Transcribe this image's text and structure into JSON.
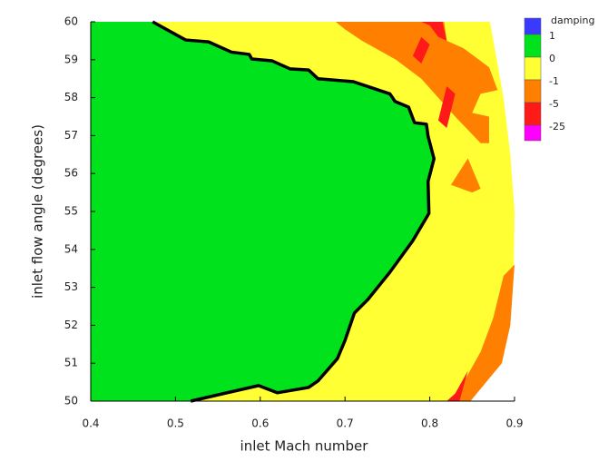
{
  "chart_data": {
    "type": "contour",
    "xlabel": "inlet Mach number",
    "ylabel": "inlet flow angle (degrees)",
    "xlim": [
      0.4,
      0.9
    ],
    "ylim": [
      50,
      60
    ],
    "xticks": [
      0.4,
      0.5,
      0.6,
      0.7,
      0.8,
      0.9
    ],
    "yticks": [
      50,
      51,
      52,
      53,
      54,
      55,
      56,
      57,
      58,
      59,
      60
    ],
    "legend_title": "damping",
    "levels": [
      1,
      0,
      -1,
      -5,
      -25
    ],
    "level_colors": [
      "#3a3aff",
      "#00e31c",
      "#ffff33",
      "#ff8000",
      "#ff1a1a",
      "#ff00ff"
    ],
    "regions": [
      {
        "color": "#ffff33",
        "x": [
          0.4,
          0.828,
          0.87,
          0.893,
          0.899,
          0.9,
          0.895,
          0.887,
          0.871,
          0.4
        ],
        "y": [
          50,
          50,
          50.8,
          52,
          53.5,
          55,
          56.5,
          58,
          60,
          60
        ]
      },
      {
        "color": "#ff8000",
        "x": [
          0.689,
          0.817,
          0.82,
          0.84,
          0.87,
          0.88,
          0.86,
          0.85,
          0.87,
          0.87,
          0.86,
          0.83,
          0.81,
          0.79,
          0.76,
          0.72,
          0.7
        ],
        "y": [
          60,
          60,
          59.5,
          59.3,
          58.8,
          58.2,
          58.1,
          57.6,
          57.5,
          56.8,
          56.8,
          57.5,
          58,
          58.5,
          59,
          59.5,
          59.8
        ]
      },
      {
        "color": "#ff8000",
        "x": [
          0.845,
          0.86,
          0.85,
          0.825
        ],
        "y": [
          56.4,
          55.6,
          55.5,
          55.7
        ]
      },
      {
        "color": "#ff8000",
        "x": [
          0.83,
          0.848,
          0.885,
          0.895,
          0.9,
          0.887,
          0.875,
          0.86,
          0.84
        ],
        "y": [
          50,
          50,
          51,
          52,
          53.6,
          53.3,
          52.2,
          51.3,
          50.5
        ]
      },
      {
        "color": "#ff1a1a",
        "x": [
          0.79,
          0.815,
          0.82,
          0.81,
          0.8
        ],
        "y": [
          60,
          60,
          59.5,
          59.6,
          59.9
        ]
      },
      {
        "color": "#ff1a1a",
        "x": [
          0.78,
          0.79,
          0.8,
          0.79
        ],
        "y": [
          59.1,
          59.6,
          59.4,
          58.9
        ]
      },
      {
        "color": "#ff1a1a",
        "x": [
          0.81,
          0.82,
          0.83,
          0.82
        ],
        "y": [
          57.4,
          58.3,
          58.1,
          57.2
        ]
      },
      {
        "color": "#ff1a1a",
        "x": [
          0.82,
          0.835,
          0.845,
          0.83
        ],
        "y": [
          50,
          50,
          50.8,
          50.2
        ]
      },
      {
        "color": "#00e31c",
        "outline": true,
        "x": [
          0.473,
          0.512,
          0.539,
          0.566,
          0.587,
          0.59,
          0.614,
          0.635,
          0.657,
          0.668,
          0.71,
          0.753,
          0.759,
          0.775,
          0.782,
          0.796,
          0.798,
          0.805,
          0.798,
          0.799,
          0.78,
          0.753,
          0.727,
          0.711,
          0.7,
          0.691,
          0.668,
          0.657,
          0.62,
          0.598,
          0.518,
          0.4,
          0.4
        ],
        "y": [
          60,
          59.52,
          59.47,
          59.2,
          59.14,
          59.02,
          58.97,
          58.76,
          58.73,
          58.5,
          58.42,
          58.1,
          57.9,
          57.75,
          57.34,
          57.3,
          56.98,
          56.39,
          55.79,
          54.95,
          54.23,
          53.4,
          52.68,
          52.32,
          51.6,
          51.12,
          50.53,
          50.36,
          50.22,
          50.41,
          50,
          50,
          60
        ]
      }
    ]
  }
}
